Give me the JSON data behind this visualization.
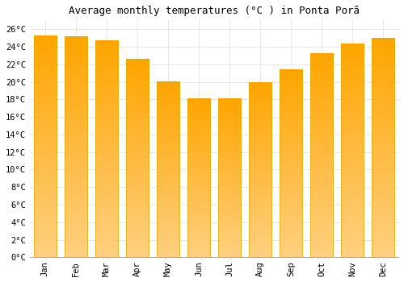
{
  "title": "Average monthly temperatures (°C ) in Ponta Porã",
  "months": [
    "Jan",
    "Feb",
    "Mar",
    "Apr",
    "May",
    "Jun",
    "Jul",
    "Aug",
    "Sep",
    "Oct",
    "Nov",
    "Dec"
  ],
  "values": [
    25.2,
    25.1,
    24.6,
    22.5,
    20.0,
    18.0,
    18.0,
    19.9,
    21.3,
    23.2,
    24.3,
    24.9
  ],
  "bar_color_top": "#FFA500",
  "bar_color_bottom": "#FFD080",
  "bar_edge_color": "#DDAA00",
  "background_color": "#FFFFFF",
  "grid_color": "#DDDDDD",
  "ylim": [
    0,
    27
  ],
  "yticks": [
    0,
    2,
    4,
    6,
    8,
    10,
    12,
    14,
    16,
    18,
    20,
    22,
    24,
    26
  ],
  "title_fontsize": 9,
  "tick_fontsize": 7.5,
  "bar_width": 0.75
}
